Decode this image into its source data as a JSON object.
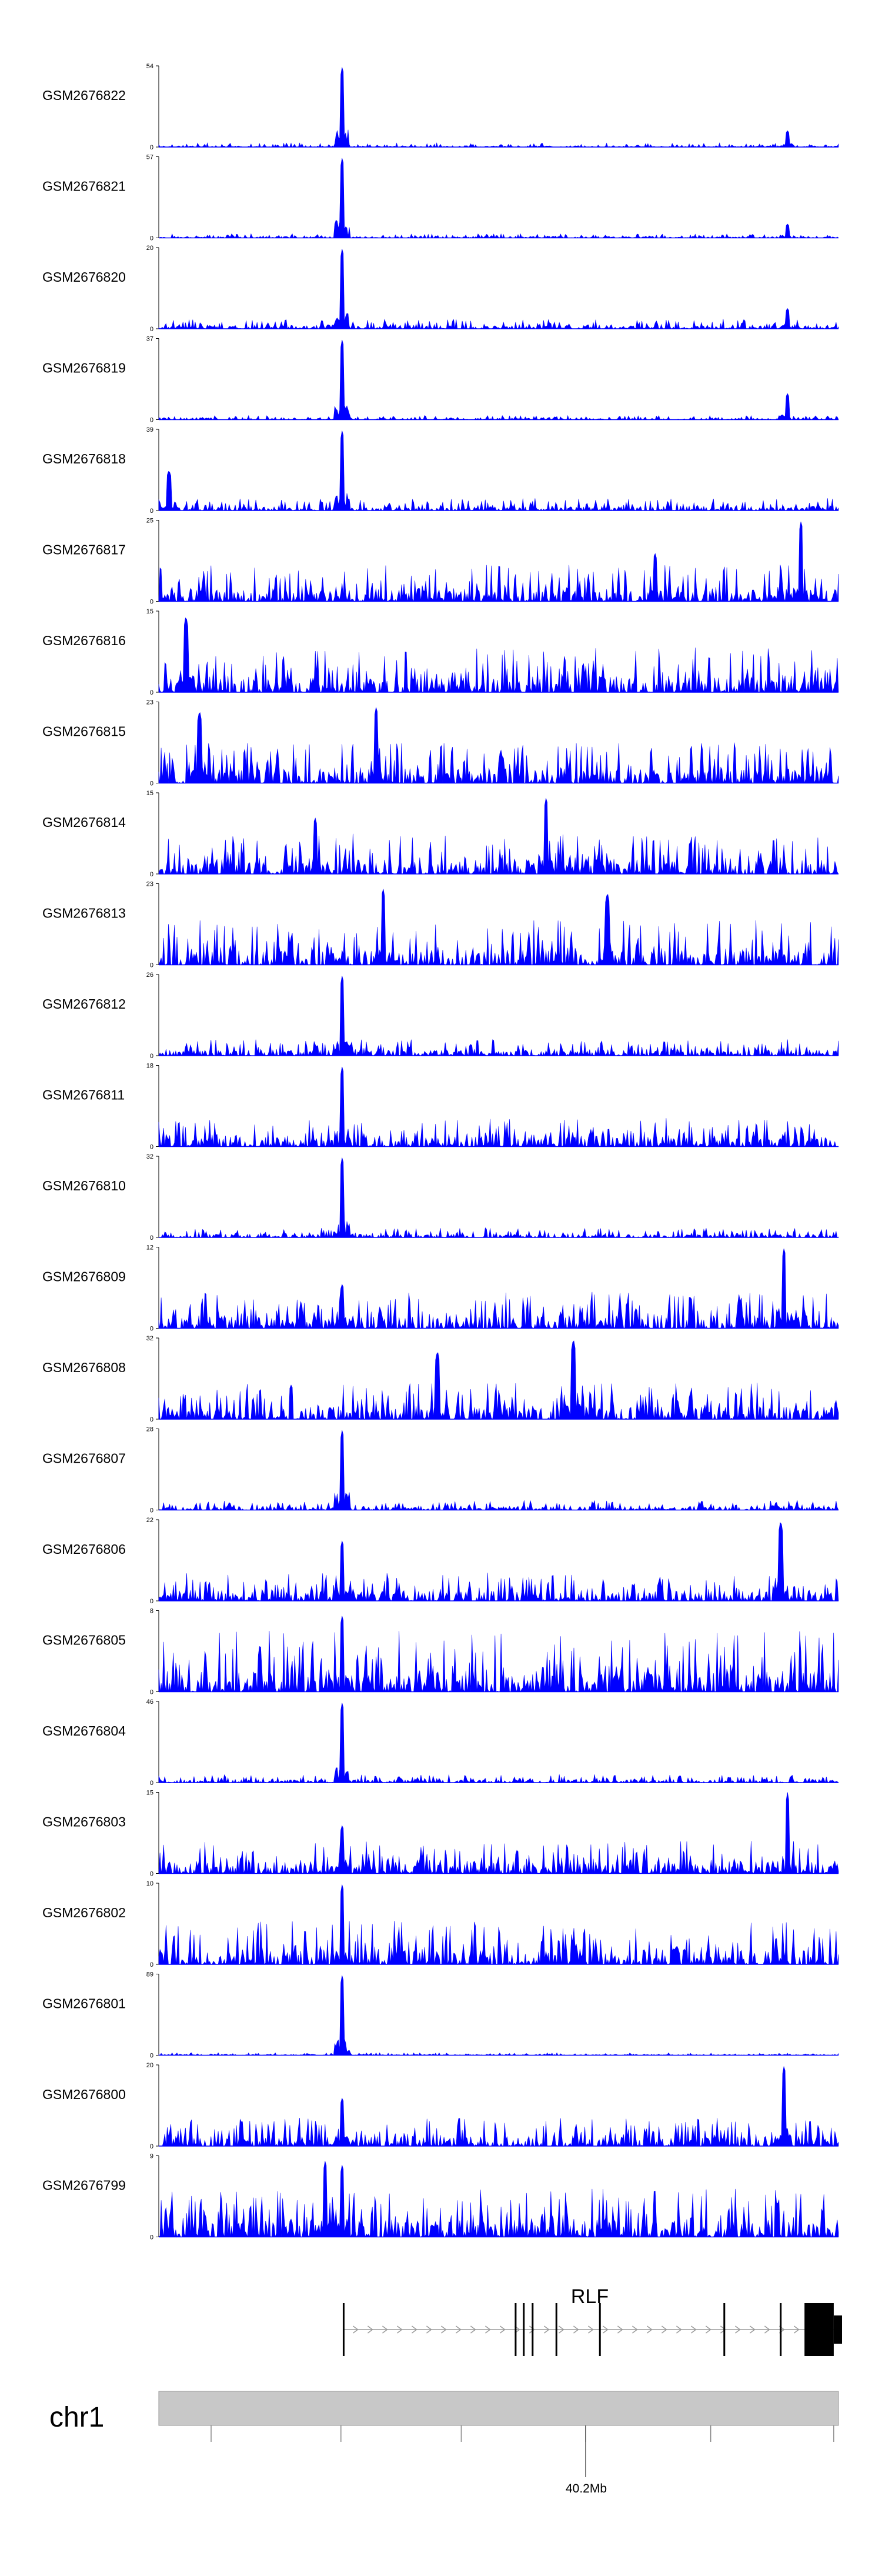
{
  "chart_data": {
    "type": "area",
    "colors": {
      "signal": "#0000ff",
      "axis": "#000000",
      "ideogram": "#c8c8c8",
      "ideogram_border": "#9a9a9a",
      "gene": "#000000",
      "intron_arrows": "#9a9a9a"
    },
    "tracks": [
      {
        "name": "GSM2676822",
        "ymax": 54,
        "ymin": 0,
        "peaks": [
          [
            0.27,
            1.0
          ],
          [
            0.925,
            0.2
          ]
        ],
        "bg": 0.05
      },
      {
        "name": "GSM2676821",
        "ymax": 57,
        "ymin": 0,
        "peaks": [
          [
            0.27,
            1.0
          ],
          [
            0.925,
            0.17
          ]
        ],
        "bg": 0.05
      },
      {
        "name": "GSM2676820",
        "ymax": 20,
        "ymin": 0,
        "peaks": [
          [
            0.27,
            1.0
          ],
          [
            0.925,
            0.25
          ]
        ],
        "bg": 0.12
      },
      {
        "name": "GSM2676819",
        "ymax": 37,
        "ymin": 0,
        "peaks": [
          [
            0.27,
            1.0
          ],
          [
            0.925,
            0.32
          ]
        ],
        "bg": 0.05
      },
      {
        "name": "GSM2676818",
        "ymax": 39,
        "ymin": 0,
        "peaks": [
          [
            0.27,
            1.0
          ],
          [
            0.015,
            0.5
          ]
        ],
        "bg": 0.15
      },
      {
        "name": "GSM2676817",
        "ymax": 25,
        "ymin": 0,
        "peaks": [
          [
            0.945,
            1.0
          ],
          [
            0.73,
            0.6
          ]
        ],
        "bg": 0.45
      },
      {
        "name": "GSM2676816",
        "ymax": 15,
        "ymin": 0,
        "peaks": [
          [
            0.04,
            0.95
          ]
        ],
        "bg": 0.55
      },
      {
        "name": "GSM2676815",
        "ymax": 23,
        "ymin": 0,
        "peaks": [
          [
            0.06,
            0.9
          ],
          [
            0.32,
            0.95
          ]
        ],
        "bg": 0.5
      },
      {
        "name": "GSM2676814",
        "ymax": 15,
        "ymin": 0,
        "peaks": [
          [
            0.57,
            0.95
          ],
          [
            0.23,
            0.7
          ]
        ],
        "bg": 0.5
      },
      {
        "name": "GSM2676813",
        "ymax": 23,
        "ymin": 0,
        "peaks": [
          [
            0.33,
            0.95
          ],
          [
            0.66,
            0.9
          ]
        ],
        "bg": 0.55
      },
      {
        "name": "GSM2676812",
        "ymax": 26,
        "ymin": 0,
        "peaks": [
          [
            0.27,
            1.0
          ]
        ],
        "bg": 0.2
      },
      {
        "name": "GSM2676811",
        "ymax": 18,
        "ymin": 0,
        "peaks": [
          [
            0.27,
            1.0
          ]
        ],
        "bg": 0.35
      },
      {
        "name": "GSM2676810",
        "ymax": 32,
        "ymin": 0,
        "peaks": [
          [
            0.27,
            1.0
          ]
        ],
        "bg": 0.12
      },
      {
        "name": "GSM2676809",
        "ymax": 12,
        "ymin": 0,
        "peaks": [
          [
            0.92,
            1.0
          ],
          [
            0.27,
            0.55
          ]
        ],
        "bg": 0.45
      },
      {
        "name": "GSM2676808",
        "ymax": 32,
        "ymin": 0,
        "peaks": [
          [
            0.61,
            1.0
          ],
          [
            0.41,
            0.85
          ]
        ],
        "bg": 0.45
      },
      {
        "name": "GSM2676807",
        "ymax": 28,
        "ymin": 0,
        "peaks": [
          [
            0.27,
            1.0
          ]
        ],
        "bg": 0.12
      },
      {
        "name": "GSM2676806",
        "ymax": 22,
        "ymin": 0,
        "peaks": [
          [
            0.915,
            1.0
          ],
          [
            0.27,
            0.75
          ]
        ],
        "bg": 0.35
      },
      {
        "name": "GSM2676805",
        "ymax": 8,
        "ymin": 0,
        "peaks": [
          [
            0.27,
            0.95
          ]
        ],
        "bg": 0.75
      },
      {
        "name": "GSM2676804",
        "ymax": 46,
        "ymin": 0,
        "peaks": [
          [
            0.27,
            1.0
          ]
        ],
        "bg": 0.1
      },
      {
        "name": "GSM2676803",
        "ymax": 15,
        "ymin": 0,
        "peaks": [
          [
            0.925,
            1.0
          ],
          [
            0.27,
            0.6
          ]
        ],
        "bg": 0.4
      },
      {
        "name": "GSM2676802",
        "ymax": 10,
        "ymin": 0,
        "peaks": [
          [
            0.27,
            1.0
          ]
        ],
        "bg": 0.55
      },
      {
        "name": "GSM2676801",
        "ymax": 89,
        "ymin": 0,
        "peaks": [
          [
            0.27,
            1.0
          ]
        ],
        "bg": 0.03
      },
      {
        "name": "GSM2676800",
        "ymax": 20,
        "ymin": 0,
        "peaks": [
          [
            0.92,
            1.0
          ],
          [
            0.27,
            0.6
          ]
        ],
        "bg": 0.35
      },
      {
        "name": "GSM2676799",
        "ymax": 9,
        "ymin": 0,
        "peaks": [
          [
            0.245,
            0.95
          ],
          [
            0.27,
            0.9
          ]
        ],
        "bg": 0.6
      }
    ],
    "gene": {
      "name": "RLF",
      "start_frac": 0.272,
      "end_frac": 1.0,
      "exons_frac": [
        0.272,
        0.525,
        0.537,
        0.55,
        0.585,
        0.649,
        0.832,
        0.915
      ],
      "utr_frac": [
        0.95,
        0.993
      ]
    },
    "chromosome": {
      "name": "chr1",
      "axis_label": "40.2Mb",
      "axis_label_frac": 0.628,
      "tick_fracs": [
        0.077,
        0.268,
        0.445,
        0.628,
        0.812,
        0.993
      ],
      "major_tick_frac": 0.628
    }
  }
}
